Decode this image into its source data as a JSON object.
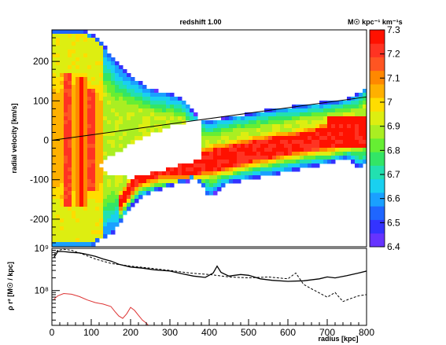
{
  "chart_data": [
    {
      "type": "heatmap",
      "title": "redshift 1.00",
      "ylabel": "radial velocity  [km/s]",
      "xlim": [
        0,
        800
      ],
      "ylim": [
        -270,
        280
      ],
      "yticks": [
        200,
        100,
        0,
        -100,
        -200
      ],
      "grid": false,
      "colorbar": {
        "title": "M☉ kpc⁻¹ km⁻¹s",
        "range": [
          6.4,
          7.3
        ],
        "ticks": [
          "7.3",
          "7.2",
          "7.1",
          "7",
          "6.9",
          "6.8",
          "6.7",
          "6.6",
          "6.5",
          "6.4"
        ],
        "colors": [
          "#6633ff",
          "#3333ff",
          "#1f66ff",
          "#1aa0ff",
          "#19d0f0",
          "#22e0b0",
          "#33e566",
          "#66ee33",
          "#aaee22",
          "#ddee11",
          "#ffdd00",
          "#ffb000",
          "#ff8800",
          "#ff5522",
          "#ff3322",
          "#ff1100"
        ]
      },
      "overlay_line": {
        "x": [
          0,
          800
        ],
        "y": [
          0,
          110
        ]
      },
      "outer_envelope": {
        "x": [
          5,
          20,
          40,
          60,
          80,
          100,
          120,
          140,
          160,
          180,
          200,
          220,
          240,
          260,
          280,
          300,
          320,
          340,
          360,
          380,
          400,
          450,
          500,
          550,
          600,
          650,
          700,
          750,
          780,
          800
        ],
        "y_upper": [
          280,
          280,
          280,
          280,
          280,
          270,
          255,
          230,
          205,
          180,
          162,
          150,
          138,
          128,
          122,
          118,
          112,
          100,
          70,
          55,
          50,
          60,
          68,
          78,
          85,
          92,
          98,
          106,
          120,
          140
        ],
        "y_lower": [
          -270,
          -270,
          -270,
          -270,
          -270,
          -270,
          -255,
          -245,
          -230,
          -200,
          -170,
          -150,
          -140,
          -130,
          -125,
          -118,
          -110,
          -105,
          -100,
          -110,
          -145,
          -108,
          -100,
          -90,
          -80,
          -70,
          -60,
          -45,
          -70,
          -60
        ]
      },
      "inner_gap": {
        "x": [
          120,
          150,
          200,
          250,
          300,
          350,
          375
        ],
        "y_upper": [
          -60,
          -40,
          -10,
          15,
          35,
          50,
          58
        ],
        "y_lower": [
          -60,
          -90,
          -95,
          -85,
          -70,
          -55,
          -50
        ]
      },
      "red_ridges": [
        {
          "x": 40,
          "y_top": 170,
          "y_bottom": -170
        },
        {
          "x": 75,
          "y_top": 165,
          "y_bottom": -165
        },
        {
          "x": 100,
          "y_top": 130,
          "y_bottom": -130
        }
      ],
      "red_band": {
        "x": [
          170,
          220,
          280,
          340,
          400,
          450,
          500,
          550,
          600,
          650,
          700,
          750,
          800
        ],
        "y_upper": [
          -150,
          -80,
          -40,
          -40,
          -25,
          -15,
          -5,
          5,
          10,
          20,
          35,
          40,
          45
        ],
        "y_lower": [
          -175,
          -110,
          -90,
          -90,
          -80,
          -70,
          -55,
          -45,
          -35,
          -25,
          -20,
          -10,
          -5
        ]
      }
    },
    {
      "type": "line",
      "ylabel": "ρ r² [M☉ / kpc]",
      "xlabel": "radius [kpc]",
      "xlim": [
        0,
        800
      ],
      "xticks": [
        0,
        100,
        200,
        300,
        400,
        500,
        600,
        700,
        800
      ],
      "ylim": [
        15000000,
        1000000000
      ],
      "y_scale": "log",
      "ytick_labels": [
        "10⁹",
        "10⁸"
      ],
      "ytick_values": [
        1000000000,
        100000000
      ],
      "series": [
        {
          "style": "solid",
          "color": "#000000",
          "x": [
            5,
            15,
            30,
            50,
            70,
            90,
            110,
            130,
            150,
            170,
            200,
            230,
            260,
            300,
            330,
            360,
            390,
            410,
            420,
            430,
            450,
            480,
            500,
            530,
            560,
            600,
            640,
            680,
            700,
            720,
            750,
            780,
            800
          ],
          "y": [
            600000000,
            850000000,
            840000000,
            800000000,
            780000000,
            720000000,
            650000000,
            560000000,
            500000000,
            420000000,
            360000000,
            340000000,
            310000000,
            290000000,
            250000000,
            220000000,
            205000000,
            260000000,
            380000000,
            270000000,
            220000000,
            240000000,
            230000000,
            190000000,
            175000000,
            165000000,
            170000000,
            190000000,
            210000000,
            200000000,
            225000000,
            260000000,
            290000000
          ]
        },
        {
          "style": "dashed",
          "color": "#000000",
          "x": [
            5,
            15,
            30,
            50,
            80,
            110,
            150,
            200,
            250,
            300,
            350,
            400,
            450,
            500,
            550,
            600,
            620,
            640,
            660,
            700,
            720,
            740,
            760,
            780,
            800
          ],
          "y": [
            700000000,
            900000000,
            950000000,
            900000000,
            720000000,
            560000000,
            440000000,
            380000000,
            340000000,
            300000000,
            260000000,
            240000000,
            210000000,
            200000000,
            210000000,
            190000000,
            260000000,
            140000000,
            110000000,
            70000000,
            90000000,
            55000000,
            65000000,
            75000000,
            80000000
          ]
        },
        {
          "style": "solid",
          "color": "#dd3333",
          "x": [
            5,
            15,
            30,
            50,
            70,
            90,
            110,
            130,
            150,
            160,
            170,
            180,
            190,
            200,
            210,
            220,
            230,
            240,
            245
          ],
          "y": [
            62000000,
            75000000,
            85000000,
            82000000,
            72000000,
            60000000,
            52000000,
            48000000,
            42000000,
            32000000,
            25000000,
            22000000,
            28000000,
            40000000,
            34000000,
            26000000,
            20000000,
            17000000,
            15000000
          ]
        }
      ]
    }
  ]
}
